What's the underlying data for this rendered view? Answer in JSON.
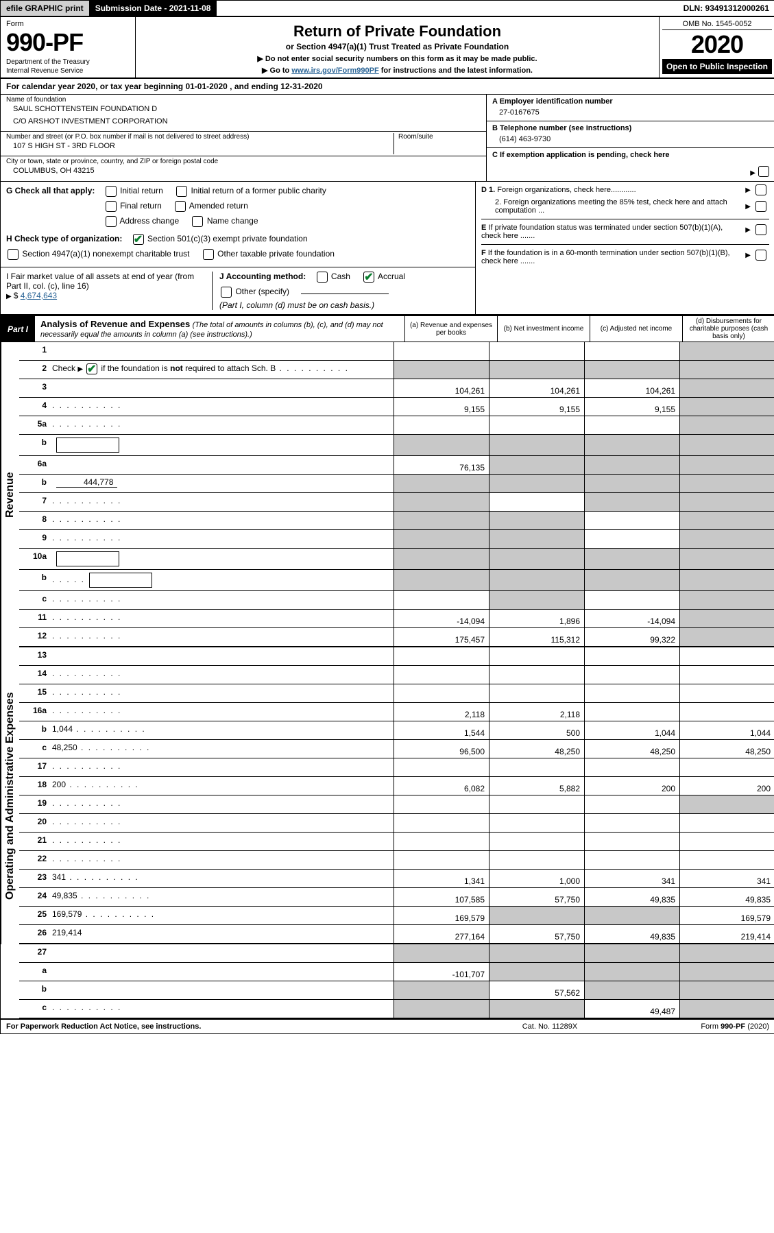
{
  "topbar": {
    "efile": "efile GRAPHIC print",
    "subdate": "Submission Date - 2021-11-08",
    "dln": "DLN: 93491312000261"
  },
  "header": {
    "form_label": "Form",
    "form_number": "990-PF",
    "dept": "Department of the Treasury",
    "irs": "Internal Revenue Service",
    "title": "Return of Private Foundation",
    "subtitle": "or Section 4947(a)(1) Trust Treated as Private Foundation",
    "instr1": "▶ Do not enter social security numbers on this form as it may be made public.",
    "instr2_pre": "▶ Go to ",
    "instr2_link": "www.irs.gov/Form990PF",
    "instr2_post": " for instructions and the latest information.",
    "omb": "OMB No. 1545-0052",
    "year": "2020",
    "open": "Open to Public Inspection"
  },
  "cal_year": "For calendar year 2020, or tax year beginning 01-01-2020                                          , and ending 12-31-2020",
  "entity": {
    "name_lbl": "Name of foundation",
    "name1": "SAUL SCHOTTENSTEIN FOUNDATION D",
    "name2": "C/O ARSHOT INVESTMENT CORPORATION",
    "addr_lbl": "Number and street (or P.O. box number if mail is not delivered to street address)",
    "addr": "107 S HIGH ST - 3RD FLOOR",
    "room_lbl": "Room/suite",
    "city_lbl": "City or town, state or province, country, and ZIP or foreign postal code",
    "city": "COLUMBUS, OH  43215",
    "ein_lbl": "A Employer identification number",
    "ein": "27-0167675",
    "tel_lbl": "B Telephone number (see instructions)",
    "tel": "(614) 463-9730",
    "c_lbl": "C If exemption application is pending, check here"
  },
  "checks": {
    "g_lead": "G Check all that apply:",
    "g_opts": [
      "Initial return",
      "Initial return of a former public charity",
      "Final return",
      "Amended return",
      "Address change",
      "Name change"
    ],
    "h_lead": "H Check type of organization:",
    "h1": "Section 501(c)(3) exempt private foundation",
    "h2": "Section 4947(a)(1) nonexempt charitable trust",
    "h3": "Other taxable private foundation",
    "i_lead": "I Fair market value of all assets at end of year (from Part II, col. (c), line 16) ",
    "i_arrow": "▶$",
    "i_val": "4,674,643",
    "j_lead": "J Accounting method:",
    "j_cash": "Cash",
    "j_accrual": "Accrual",
    "j_other": "Other (specify)",
    "j_note": "(Part I, column (d) must be on cash basis.)",
    "d1": "D 1. Foreign organizations, check here............",
    "d2": "2. Foreign organizations meeting the 85% test, check here and attach computation ...",
    "e": "E  If private foundation status was terminated under section 507(b)(1)(A), check here .......",
    "f": "F  If the foundation is in a 60-month termination under section 507(b)(1)(B), check here .......",
    "d2_indent": true
  },
  "part1": {
    "badge": "Part I",
    "title": "Analysis of Revenue and Expenses",
    "sub": "(The total of amounts in columns (b), (c), and (d) may not necessarily equal the amounts in column (a) (see instructions).)",
    "col_a": "(a) Revenue and expenses per books",
    "col_b": "(b) Net investment income",
    "col_c": "(c) Adjusted net income",
    "col_d": "(d) Disbursements for charitable purposes (cash basis only)"
  },
  "side_labels": {
    "revenue": "Revenue",
    "expenses": "Operating and Administrative Expenses"
  },
  "rows": [
    {
      "n": "1",
      "d": "",
      "a": "",
      "b": "",
      "c": "",
      "shade": [
        "d"
      ]
    },
    {
      "n": "2",
      "d": "Check ▶ ✔ if the foundation is <b>not</b> required to attach Sch. B",
      "nocells": true,
      "checkmark": true,
      "dots": true
    },
    {
      "n": "3",
      "d": "",
      "a": "104,261",
      "b": "104,261",
      "c": "104,261",
      "shade": [
        "d"
      ]
    },
    {
      "n": "4",
      "d": "",
      "a": "9,155",
      "b": "9,155",
      "c": "9,155",
      "shade": [
        "d"
      ],
      "dots": true
    },
    {
      "n": "5a",
      "d": "",
      "a": "",
      "b": "",
      "c": "",
      "shade": [
        "d"
      ],
      "dots": true
    },
    {
      "n": "b",
      "d": "",
      "inlinebox": true,
      "nocells": false,
      "a": "",
      "b": "",
      "c": "",
      "shade": [
        "a",
        "b",
        "c",
        "d"
      ]
    },
    {
      "n": "6a",
      "d": "",
      "a": "76,135",
      "b": "",
      "c": "",
      "shade": [
        "b",
        "c",
        "d"
      ]
    },
    {
      "n": "b",
      "d": "",
      "inlineval": "444,778",
      "a": "",
      "b": "",
      "c": "",
      "shade": [
        "a",
        "b",
        "c",
        "d"
      ]
    },
    {
      "n": "7",
      "d": "",
      "a": "",
      "b": "",
      "c": "",
      "shade": [
        "a",
        "c",
        "d"
      ],
      "dots": true
    },
    {
      "n": "8",
      "d": "",
      "a": "",
      "b": "",
      "c": "",
      "shade": [
        "a",
        "b",
        "d"
      ],
      "dots": true
    },
    {
      "n": "9",
      "d": "",
      "a": "",
      "b": "",
      "c": "",
      "shade": [
        "a",
        "b",
        "d"
      ],
      "dots": true
    },
    {
      "n": "10a",
      "d": "",
      "inlinebox": true,
      "a": "",
      "b": "",
      "c": "",
      "shade": [
        "a",
        "b",
        "c",
        "d"
      ]
    },
    {
      "n": "b",
      "d": "",
      "inlinebox": true,
      "a": "",
      "b": "",
      "c": "",
      "shade": [
        "a",
        "b",
        "c",
        "d"
      ],
      "dots": true
    },
    {
      "n": "c",
      "d": "",
      "a": "",
      "b": "",
      "c": "",
      "shade": [
        "b",
        "d"
      ],
      "dots": true
    },
    {
      "n": "11",
      "d": "",
      "a": "-14,094",
      "b": "1,896",
      "c": "-14,094",
      "shade": [
        "d"
      ],
      "dots": true
    },
    {
      "n": "12",
      "d": "",
      "a": "175,457",
      "b": "115,312",
      "c": "99,322",
      "shade": [
        "d"
      ],
      "dots": true,
      "divider": true
    },
    {
      "n": "13",
      "d": "",
      "a": "",
      "b": "",
      "c": ""
    },
    {
      "n": "14",
      "d": "",
      "a": "",
      "b": "",
      "c": "",
      "dots": true
    },
    {
      "n": "15",
      "d": "",
      "a": "",
      "b": "",
      "c": "",
      "dots": true
    },
    {
      "n": "16a",
      "d": "",
      "a": "2,118",
      "b": "2,118",
      "c": "",
      "dots": true
    },
    {
      "n": "b",
      "d": "1,044",
      "a": "1,544",
      "b": "500",
      "c": "1,044",
      "dots": true
    },
    {
      "n": "c",
      "d": "48,250",
      "a": "96,500",
      "b": "48,250",
      "c": "48,250",
      "dots": true
    },
    {
      "n": "17",
      "d": "",
      "a": "",
      "b": "",
      "c": "",
      "dots": true
    },
    {
      "n": "18",
      "d": "200",
      "a": "6,082",
      "b": "5,882",
      "c": "200",
      "dots": true
    },
    {
      "n": "19",
      "d": "",
      "a": "",
      "b": "",
      "c": "",
      "shade": [
        "d"
      ],
      "dots": true
    },
    {
      "n": "20",
      "d": "",
      "a": "",
      "b": "",
      "c": "",
      "dots": true
    },
    {
      "n": "21",
      "d": "",
      "a": "",
      "b": "",
      "c": "",
      "dots": true
    },
    {
      "n": "22",
      "d": "",
      "a": "",
      "b": "",
      "c": "",
      "dots": true
    },
    {
      "n": "23",
      "d": "341",
      "a": "1,341",
      "b": "1,000",
      "c": "341",
      "dots": true
    },
    {
      "n": "24",
      "d": "49,835",
      "a": "107,585",
      "b": "57,750",
      "c": "49,835",
      "dots": true,
      "twoline": true
    },
    {
      "n": "25",
      "d": "169,579",
      "a": "169,579",
      "b": "",
      "c": "",
      "shade": [
        "b",
        "c"
      ],
      "dots": true
    },
    {
      "n": "26",
      "d": "219,414",
      "a": "277,164",
      "b": "57,750",
      "c": "49,835",
      "divider": true
    },
    {
      "n": "27",
      "d": "",
      "a": "",
      "b": "",
      "c": "",
      "shade": [
        "a",
        "b",
        "c",
        "d"
      ]
    },
    {
      "n": "a",
      "d": "",
      "a": "-101,707",
      "b": "",
      "c": "",
      "shade": [
        "b",
        "c",
        "d"
      ]
    },
    {
      "n": "b",
      "d": "",
      "a": "",
      "b": "57,562",
      "c": "",
      "shade": [
        "a",
        "c",
        "d"
      ]
    },
    {
      "n": "c",
      "d": "",
      "a": "",
      "b": "",
      "c": "49,487",
      "shade": [
        "a",
        "b",
        "d"
      ],
      "dots": true
    }
  ],
  "footer": {
    "l": "For Paperwork Reduction Act Notice, see instructions.",
    "m": "Cat. No. 11289X",
    "r": "Form 990-PF (2020)"
  },
  "colors": {
    "shaded": "#c8c8c8",
    "link": "#2a6496",
    "check_green": "#0a7f2e"
  }
}
